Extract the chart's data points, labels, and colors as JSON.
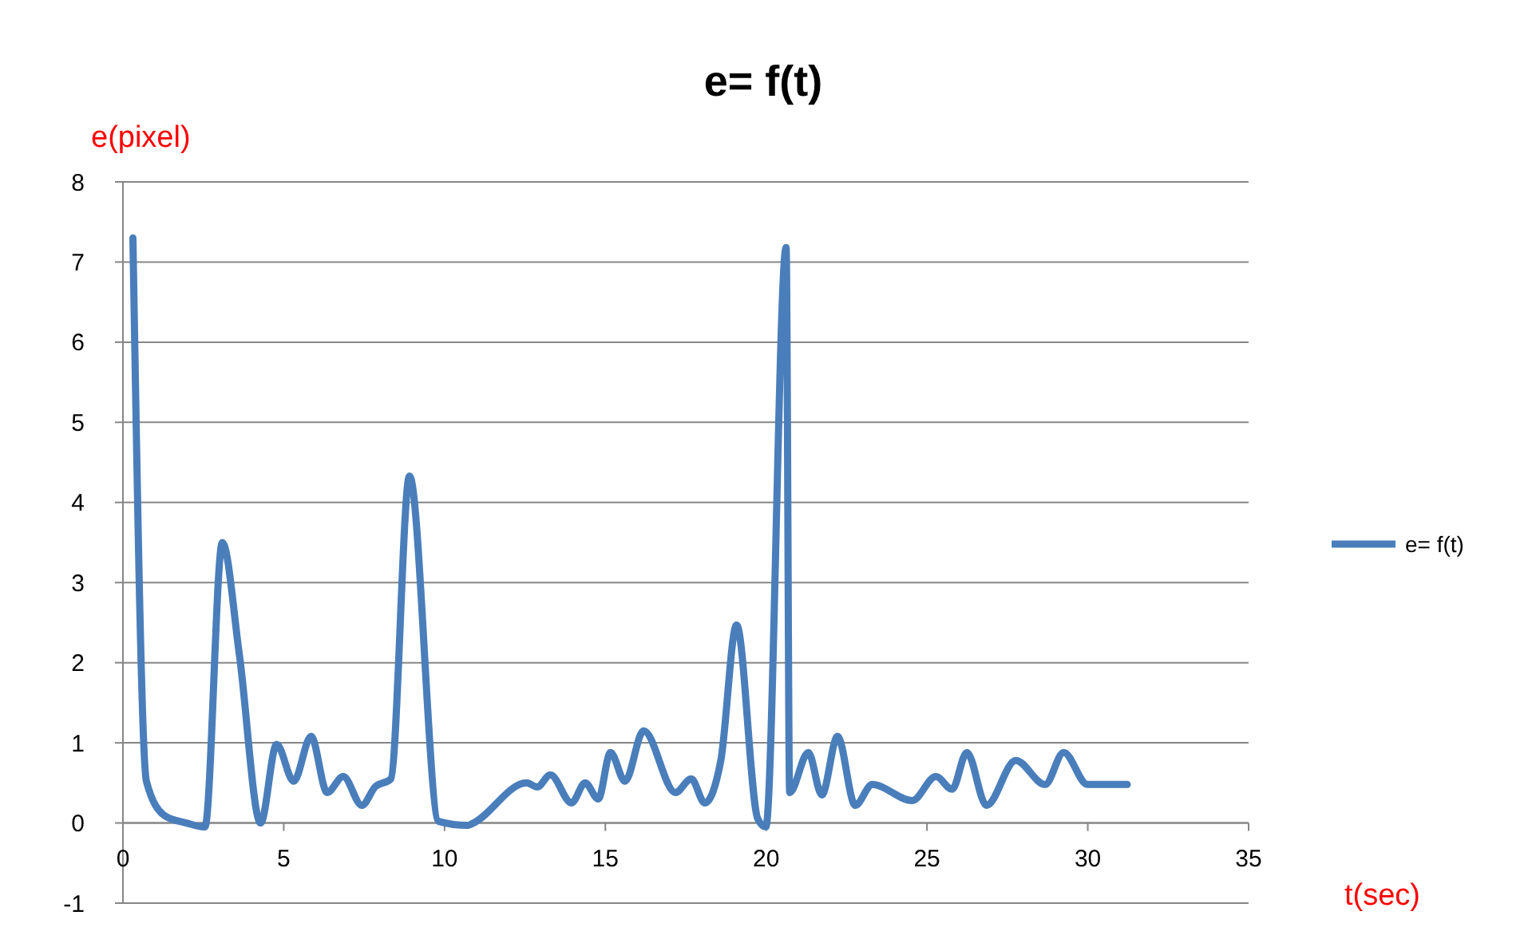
{
  "chart_data": {
    "type": "line",
    "title": "e= f(t)",
    "xlabel": "t(sec)",
    "ylabel": "e(pixel)",
    "series": [
      {
        "name": "e= f(t)",
        "color": "#4a7ebb",
        "x": [
          0.31,
          0.73,
          1.3,
          1.97,
          2.55,
          3.09,
          3.62,
          4.28,
          4.78,
          5.31,
          5.85,
          6.35,
          6.85,
          7.43,
          7.84,
          8.33,
          8.91,
          9.82,
          10.73,
          10.9,
          12.55,
          12.88,
          13.29,
          13.95,
          14.37,
          14.78,
          15.16,
          15.61,
          16.19,
          17.18,
          17.67,
          18.09,
          18.59,
          19.08,
          19.74,
          19.99,
          20.62,
          20.73,
          21.31,
          21.73,
          22.22,
          22.77,
          23.3,
          24.54,
          25.28,
          25.78,
          26.24,
          26.85,
          27.76,
          28.67,
          29.25,
          29.99,
          31.23
        ],
        "values": [
          7.3,
          0.52,
          0.09,
          0,
          -0.05,
          3.5,
          2.1,
          0,
          0.98,
          0.52,
          1.08,
          0.38,
          0.58,
          0.22,
          0.45,
          0.55,
          4.33,
          0.02,
          -0.03,
          0,
          0.5,
          0.45,
          0.6,
          0.25,
          0.5,
          0.3,
          0.88,
          0.52,
          1.15,
          0.38,
          0.55,
          0.25,
          0.78,
          2.47,
          0.05,
          -0.05,
          7.18,
          0.38,
          0.88,
          0.35,
          1.08,
          0.22,
          0.48,
          0.28,
          0.58,
          0.42,
          0.88,
          0.22,
          0.78,
          0.48,
          0.88,
          0.48,
          0.48
        ]
      }
    ],
    "xlim": [
      0,
      35
    ],
    "xticks": [
      0,
      5,
      10,
      15,
      20,
      25,
      30,
      35
    ],
    "ylim": [
      -1,
      8
    ],
    "yticks": [
      -1,
      0,
      1,
      2,
      3,
      4,
      5,
      6,
      7,
      8
    ],
    "grid": "y",
    "legend": "right",
    "marker": "none",
    "line_style": "solid"
  }
}
